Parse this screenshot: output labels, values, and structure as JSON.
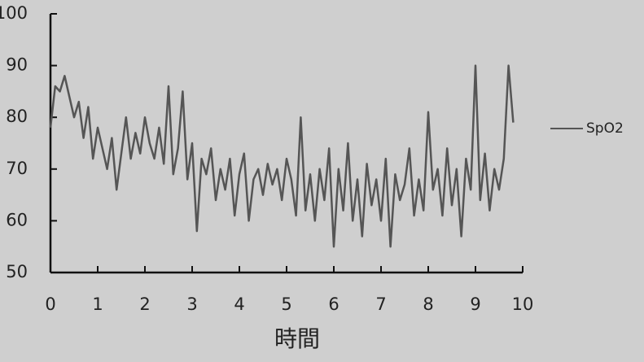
{
  "chart_data": {
    "type": "line",
    "x_label": "時間",
    "x": [
      0,
      0.1,
      0.2,
      0.3,
      0.4,
      0.5,
      0.6,
      0.7,
      0.8,
      0.9,
      1,
      1.1,
      1.2,
      1.3,
      1.4,
      1.5,
      1.6,
      1.7,
      1.8,
      1.9,
      2,
      2.1,
      2.2,
      2.3,
      2.4,
      2.5,
      2.6,
      2.7,
      2.8,
      2.9,
      3,
      3.1,
      3.2,
      3.3,
      3.4,
      3.5,
      3.6,
      3.7,
      3.8,
      3.9,
      4,
      4.1,
      4.2,
      4.3,
      4.4,
      4.5,
      4.6,
      4.7,
      4.8,
      4.9,
      5,
      5.1,
      5.2,
      5.3,
      5.4,
      5.5,
      5.6,
      5.7,
      5.8,
      5.9,
      6,
      6.1,
      6.2,
      6.3,
      6.4,
      6.5,
      6.6,
      6.7,
      6.8,
      6.9,
      7,
      7.1,
      7.2,
      7.3,
      7.4,
      7.5,
      7.6,
      7.7,
      7.8,
      7.9,
      8,
      8.1,
      8.2,
      8.3,
      8.4,
      8.5,
      8.6,
      8.7,
      8.8,
      8.9,
      9,
      9.1,
      9.2,
      9.3,
      9.4,
      9.5,
      9.6,
      9.7,
      9.8
    ],
    "series": [
      {
        "name": "SpO2",
        "color": "#555555",
        "values": [
          78,
          86,
          85,
          88,
          84,
          80,
          83,
          76,
          82,
          72,
          78,
          74,
          70,
          76,
          66,
          73,
          80,
          72,
          77,
          73,
          80,
          75,
          72,
          78,
          71,
          86,
          69,
          74,
          85,
          68,
          75,
          58,
          72,
          69,
          74,
          64,
          70,
          66,
          72,
          61,
          69,
          73,
          60,
          68,
          70,
          65,
          71,
          67,
          70,
          64,
          72,
          68,
          61,
          80,
          62,
          69,
          60,
          70,
          64,
          74,
          55,
          70,
          62,
          75,
          60,
          68,
          57,
          71,
          63,
          68,
          60,
          72,
          55,
          69,
          64,
          67,
          74,
          61,
          68,
          62,
          81,
          66,
          70,
          61,
          74,
          63,
          70,
          57,
          72,
          66,
          90,
          64,
          73,
          62,
          70,
          66,
          72,
          90,
          79
        ]
      }
    ],
    "xlim": [
      0,
      10
    ],
    "xticks": [
      0,
      1,
      2,
      3,
      4,
      5,
      6,
      7,
      8,
      9,
      10
    ],
    "ylim": [
      50,
      100
    ],
    "yticks": [
      50,
      60,
      70,
      80,
      90,
      100
    ]
  }
}
